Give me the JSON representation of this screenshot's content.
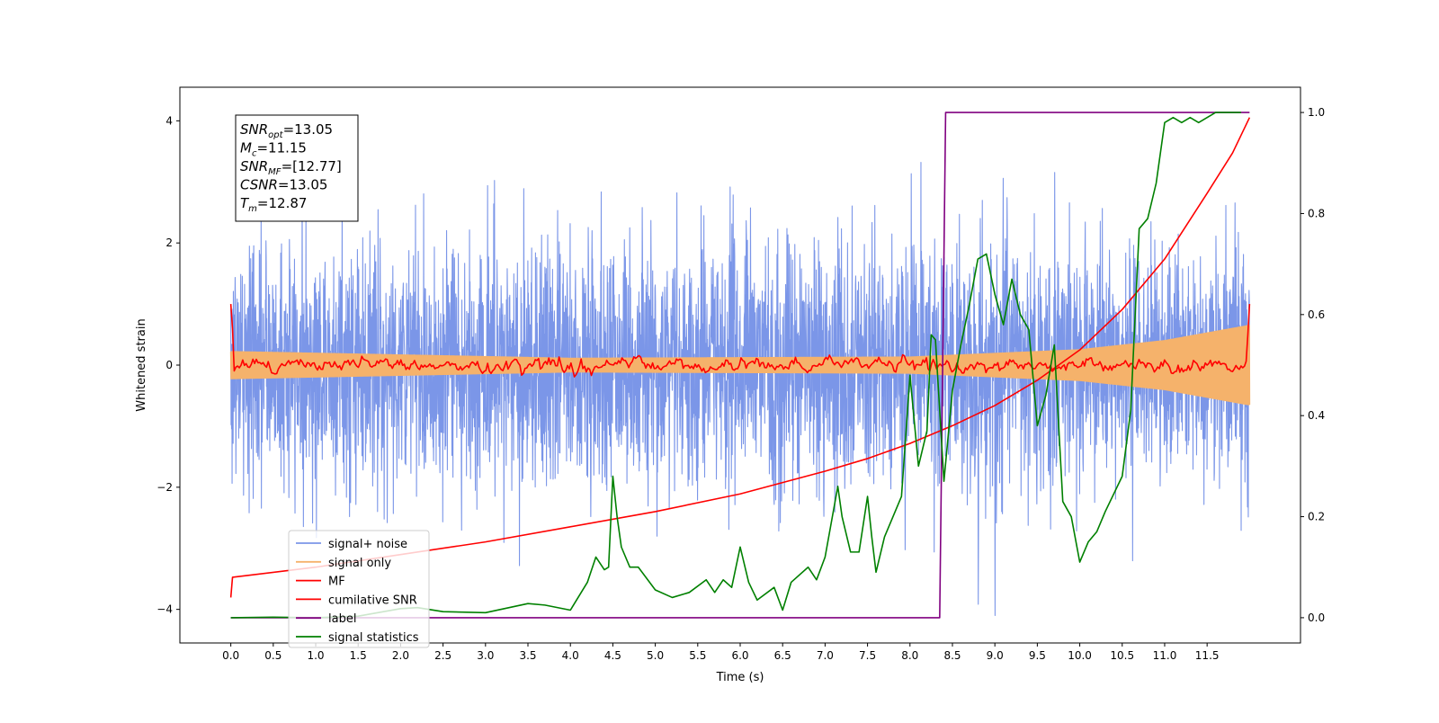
{
  "chart_data": {
    "type": "line",
    "xlabel": "Time (s)",
    "ylabel": "Whitened strain",
    "xlim": [
      -0.6,
      12.6
    ],
    "ylim": [
      -4.55,
      4.55
    ],
    "y2lim": [
      -0.05,
      1.05
    ],
    "x_ticks": [
      0.0,
      0.5,
      1.0,
      1.5,
      2.0,
      2.5,
      3.0,
      3.5,
      4.0,
      4.5,
      5.0,
      5.5,
      6.0,
      6.5,
      7.0,
      7.5,
      8.0,
      8.5,
      9.0,
      9.5,
      10.0,
      10.5,
      11.0,
      11.5
    ],
    "x_tick_labels": [
      "0.0",
      "0.5",
      "1.0",
      "1.5",
      "2.0",
      "2.5",
      "3.0",
      "3.5",
      "4.0",
      "4.5",
      "5.0",
      "5.5",
      "6.0",
      "6.5",
      "7.0",
      "7.5",
      "8.0",
      "8.5",
      "9.0",
      "9.5",
      "10.0",
      "10.5",
      "11.0",
      "11.5"
    ],
    "y_ticks": [
      -4,
      -2,
      0,
      2,
      4
    ],
    "y_tick_labels": [
      "−4",
      "−2",
      "0",
      "2",
      "4"
    ],
    "y2_ticks": [
      0.0,
      0.2,
      0.4,
      0.6,
      0.8,
      1.0
    ],
    "y2_tick_labels": [
      "0.0",
      "0.2",
      "0.4",
      "0.6",
      "0.8",
      "1.0"
    ],
    "grid": false,
    "legend_position": "lower-left",
    "annotation": {
      "lines": [
        {
          "name": "SNR",
          "sub": "opt",
          "value": "=13.05"
        },
        {
          "name": "M",
          "sub": "c",
          "value": "=11.15"
        },
        {
          "name": "SNR",
          "sub": "MF",
          "value": "=[12.77]"
        },
        {
          "name": "CSNR",
          "sub": "",
          "value": "=13.05"
        },
        {
          "name": "T",
          "sub": "m",
          "value": "=12.87"
        }
      ]
    },
    "series": [
      {
        "name": "signal+ noise",
        "color": "#7b96e8",
        "axis": "left",
        "kind": "noise",
        "t_range": [
          0.0,
          12.0
        ],
        "amplitude_std": 1.0,
        "y_range": [
          -4.1,
          4.15
        ]
      },
      {
        "name": "signal only",
        "color": "#f5b26b",
        "axis": "left",
        "kind": "chirp",
        "t_range": [
          0.0,
          12.0
        ],
        "envelope": [
          [
            0.0,
            0.22
          ],
          [
            4.0,
            0.11
          ],
          [
            8.0,
            0.13
          ],
          [
            10.0,
            0.25
          ],
          [
            11.0,
            0.4
          ],
          [
            12.0,
            0.65
          ]
        ]
      },
      {
        "name": "MF",
        "color": "#ff0000",
        "axis": "left",
        "kind": "noise-small",
        "t_range": [
          0.0,
          12.0
        ],
        "start": 1.0,
        "end": 1.0,
        "std": 0.05
      },
      {
        "name": "cumilative SNR",
        "color": "#ff0000",
        "axis": "right",
        "x": [
          0.0,
          0.02,
          1.0,
          2.0,
          3.0,
          4.0,
          5.0,
          6.0,
          7.0,
          7.5,
          8.0,
          8.5,
          9.0,
          9.5,
          10.0,
          10.5,
          11.0,
          11.5,
          11.8,
          12.0
        ],
        "y": [
          0.04,
          0.08,
          0.1,
          0.125,
          0.15,
          0.18,
          0.21,
          0.245,
          0.29,
          0.315,
          0.345,
          0.38,
          0.42,
          0.47,
          0.53,
          0.61,
          0.71,
          0.84,
          0.92,
          0.99
        ]
      },
      {
        "name": "label",
        "color": "#800080",
        "axis": "right",
        "x": [
          0.0,
          8.35,
          8.42,
          12.0
        ],
        "y": [
          0.0,
          0.0,
          1.0,
          1.0
        ]
      },
      {
        "name": "signal statistics",
        "color": "#008000",
        "axis": "right",
        "x": [
          0.0,
          0.5,
          1.0,
          1.5,
          2.0,
          2.2,
          2.5,
          3.0,
          3.5,
          3.7,
          4.0,
          4.2,
          4.3,
          4.4,
          4.45,
          4.5,
          4.55,
          4.6,
          4.7,
          4.8,
          5.0,
          5.2,
          5.4,
          5.6,
          5.7,
          5.8,
          5.9,
          6.0,
          6.1,
          6.2,
          6.4,
          6.5,
          6.6,
          6.8,
          6.9,
          7.0,
          7.15,
          7.2,
          7.3,
          7.4,
          7.5,
          7.55,
          7.6,
          7.7,
          7.8,
          7.9,
          8.0,
          8.1,
          8.2,
          8.25,
          8.3,
          8.4,
          8.45,
          8.5,
          8.6,
          8.7,
          8.8,
          8.9,
          9.0,
          9.1,
          9.2,
          9.3,
          9.4,
          9.5,
          9.6,
          9.7,
          9.8,
          9.9,
          10.0,
          10.1,
          10.2,
          10.3,
          10.5,
          10.6,
          10.7,
          10.8,
          10.9,
          11.0,
          11.1,
          11.2,
          11.3,
          11.4,
          11.5,
          11.6,
          11.7,
          11.8,
          11.9
        ],
        "y": [
          0.0,
          0.001,
          0.0,
          0.003,
          0.018,
          0.02,
          0.012,
          0.01,
          0.028,
          0.025,
          0.015,
          0.07,
          0.12,
          0.095,
          0.1,
          0.28,
          0.2,
          0.14,
          0.1,
          0.1,
          0.055,
          0.04,
          0.05,
          0.075,
          0.05,
          0.075,
          0.06,
          0.14,
          0.07,
          0.035,
          0.06,
          0.015,
          0.07,
          0.1,
          0.075,
          0.12,
          0.26,
          0.2,
          0.13,
          0.13,
          0.24,
          0.16,
          0.09,
          0.16,
          0.2,
          0.24,
          0.48,
          0.3,
          0.37,
          0.56,
          0.55,
          0.27,
          0.36,
          0.45,
          0.54,
          0.62,
          0.71,
          0.72,
          0.64,
          0.58,
          0.67,
          0.6,
          0.57,
          0.38,
          0.44,
          0.54,
          0.23,
          0.2,
          0.11,
          0.15,
          0.17,
          0.21,
          0.28,
          0.41,
          0.77,
          0.79,
          0.86,
          0.98,
          0.99,
          0.98,
          0.99,
          0.98,
          0.99,
          1.0,
          1.0,
          1.0,
          1.0
        ]
      }
    ]
  }
}
